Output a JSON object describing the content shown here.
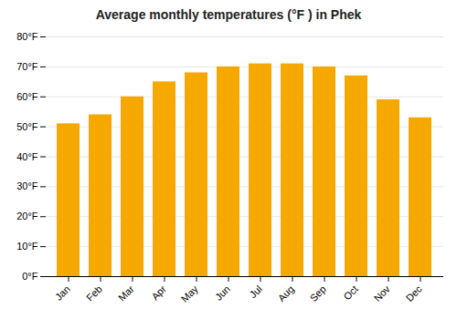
{
  "chart_data": {
    "type": "bar",
    "title": "Average monthly temperatures (°F ) in Phek",
    "categories": [
      "Jan",
      "Feb",
      "Mar",
      "Apr",
      "May",
      "Jun",
      "Jul",
      "Aug",
      "Sep",
      "Oct",
      "Nov",
      "Dec"
    ],
    "values": [
      51,
      54,
      60,
      65,
      68,
      70,
      71,
      71,
      70,
      67,
      59,
      53
    ],
    "color": "#F5A800",
    "ylim": [
      0,
      80
    ],
    "yticks": [
      {
        "value": 0,
        "label": "0°F"
      },
      {
        "value": 10,
        "label": "10°F"
      },
      {
        "value": 20,
        "label": "20°F"
      },
      {
        "value": 30,
        "label": "30°F"
      },
      {
        "value": 40,
        "label": "40°F"
      },
      {
        "value": 50,
        "label": "50°F"
      },
      {
        "value": 60,
        "label": "60°F"
      },
      {
        "value": 70,
        "label": "70°F"
      },
      {
        "value": 80,
        "label": "80°F"
      }
    ],
    "grid": true
  }
}
